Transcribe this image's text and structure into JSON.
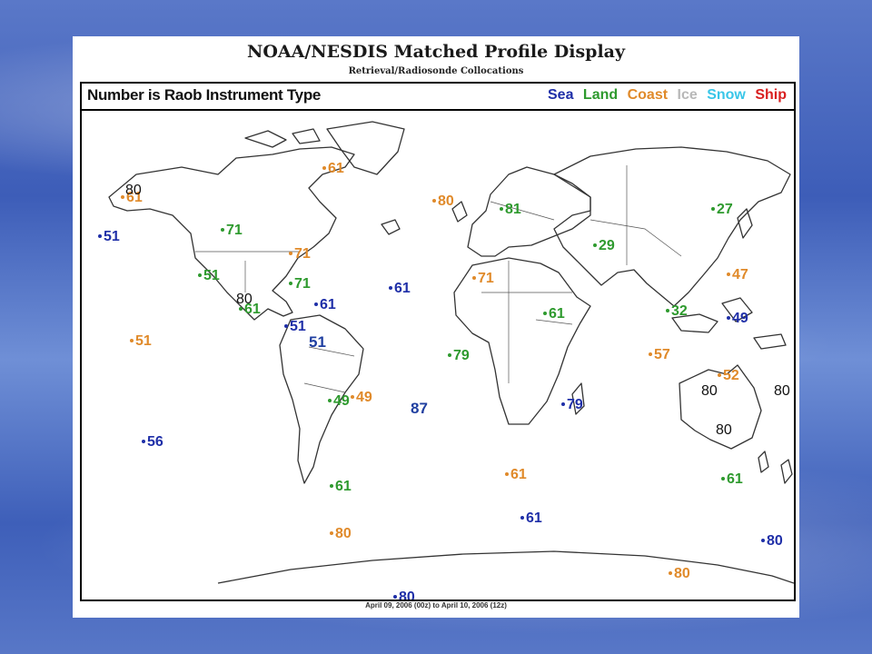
{
  "title": "NOAA/NESDIS Matched Profile Display",
  "subtitle": "Retrieval/Radiosonde Collocations",
  "map_header": "Number is Raob Instrument Type",
  "legend": [
    {
      "label": "Sea",
      "color": "#1f2fa8"
    },
    {
      "label": "Land",
      "color": "#2e9a2e"
    },
    {
      "label": "Coast",
      "color": "#e08a2a"
    },
    {
      "label": "Ice",
      "color": "#b8b8b8"
    },
    {
      "label": "Snow",
      "color": "#39c6e8"
    },
    {
      "label": "Ship",
      "color": "#d91f1f"
    }
  ],
  "date_caption": "April 09, 2006 (00z) to April 10, 2006 (12z)",
  "markers": [
    {
      "text": "61",
      "type": "Coast"
    },
    {
      "text": "61",
      "type": "Coast"
    },
    {
      "text": "51",
      "type": "Sea"
    },
    {
      "text": "71",
      "type": "Land"
    },
    {
      "text": "71",
      "type": "Coast"
    },
    {
      "text": "51",
      "type": "Land"
    },
    {
      "text": "71",
      "type": "Land"
    },
    {
      "text": "61",
      "type": "Land"
    },
    {
      "text": "61",
      "type": "Sea"
    },
    {
      "text": "51",
      "type": "Sea"
    },
    {
      "text": "51",
      "type": "Coast"
    },
    {
      "text": "61",
      "type": "Sea"
    },
    {
      "text": "80",
      "type": "Coast"
    },
    {
      "text": "81",
      "type": "Land"
    },
    {
      "text": "27",
      "type": "Land"
    },
    {
      "text": "29",
      "type": "Land"
    },
    {
      "text": "71",
      "type": "Coast"
    },
    {
      "text": "47",
      "type": "Coast"
    },
    {
      "text": "61",
      "type": "Land"
    },
    {
      "text": "32",
      "type": "Land"
    },
    {
      "text": "49",
      "type": "Sea"
    },
    {
      "text": "79",
      "type": "Land"
    },
    {
      "text": "57",
      "type": "Coast"
    },
    {
      "text": "52",
      "type": "Coast"
    },
    {
      "text": "49",
      "type": "Land"
    },
    {
      "text": "49",
      "type": "Coast"
    },
    {
      "text": "79",
      "type": "Sea"
    },
    {
      "text": "56",
      "type": "Sea"
    },
    {
      "text": "61",
      "type": "Coast"
    },
    {
      "text": "61",
      "type": "Land"
    },
    {
      "text": "61",
      "type": "Land"
    },
    {
      "text": "61",
      "type": "Sea"
    },
    {
      "text": "80",
      "type": "Coast"
    },
    {
      "text": "80",
      "type": "Sea"
    },
    {
      "text": "80",
      "type": "Coast"
    },
    {
      "text": "80",
      "type": "Sea"
    }
  ],
  "overlay_labels": [
    "80",
    "80",
    "51",
    "87",
    "80",
    "80",
    "80"
  ]
}
